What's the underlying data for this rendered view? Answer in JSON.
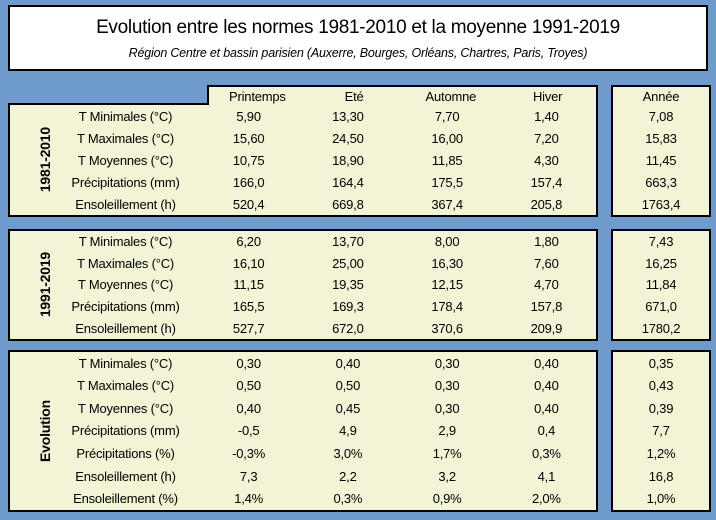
{
  "chart_data": {
    "type": "table",
    "title": "Evolution entre les normes 1981-2010 et la moyenne 1991-2019",
    "subtitle": "Région Centre et bassin parisien (Auxerre, Bourges, Orléans, Chartres, Paris, Troyes)",
    "columns": [
      "Printemps",
      "Eté",
      "Automne",
      "Hiver"
    ],
    "year_column_header": "Année",
    "sections": [
      {
        "label": "1981-2010",
        "rows": [
          {
            "label": "T Minimales (°C)",
            "values": [
              "5,90",
              "13,30",
              "7,70",
              "1,40"
            ],
            "annee": "7,08"
          },
          {
            "label": "T Maximales (°C)",
            "values": [
              "15,60",
              "24,50",
              "16,00",
              "7,20"
            ],
            "annee": "15,83"
          },
          {
            "label": "T Moyennes (°C)",
            "values": [
              "10,75",
              "18,90",
              "11,85",
              "4,30"
            ],
            "annee": "11,45"
          },
          {
            "label": "Précipitations (mm)",
            "values": [
              "166,0",
              "164,4",
              "175,5",
              "157,4"
            ],
            "annee": "663,3"
          },
          {
            "label": "Ensoleillement (h)",
            "values": [
              "520,4",
              "669,8",
              "367,4",
              "205,8"
            ],
            "annee": "1763,4"
          }
        ]
      },
      {
        "label": "1991-2019",
        "rows": [
          {
            "label": "T Minimales (°C)",
            "values": [
              "6,20",
              "13,70",
              "8,00",
              "1,80"
            ],
            "annee": "7,43"
          },
          {
            "label": "T Maximales (°C)",
            "values": [
              "16,10",
              "25,00",
              "16,30",
              "7,60"
            ],
            "annee": "16,25"
          },
          {
            "label": "T Moyennes (°C)",
            "values": [
              "11,15",
              "19,35",
              "12,15",
              "4,70"
            ],
            "annee": "11,84"
          },
          {
            "label": "Précipitations (mm)",
            "values": [
              "165,5",
              "169,3",
              "178,4",
              "157,8"
            ],
            "annee": "671,0"
          },
          {
            "label": "Ensoleillement (h)",
            "values": [
              "527,7",
              "672,0",
              "370,6",
              "209,9"
            ],
            "annee": "1780,2"
          }
        ]
      },
      {
        "label": "Evolution",
        "rows": [
          {
            "label": "T Minimales (°C)",
            "values": [
              "0,30",
              "0,40",
              "0,30",
              "0,40"
            ],
            "annee": "0,35"
          },
          {
            "label": "T Maximales (°C)",
            "values": [
              "0,50",
              "0,50",
              "0,30",
              "0,40"
            ],
            "annee": "0,43"
          },
          {
            "label": "T Moyennes (°C)",
            "values": [
              "0,40",
              "0,45",
              "0,30",
              "0,40"
            ],
            "annee": "0,39"
          },
          {
            "label": "Précipitations (mm)",
            "values": [
              "-0,5",
              "4,9",
              "2,9",
              "0,4"
            ],
            "annee": "7,7"
          },
          {
            "label": "Précipitations (%)",
            "values": [
              "-0,3%",
              "3,0%",
              "1,7%",
              "0,3%"
            ],
            "annee": "1,2%"
          },
          {
            "label": "Ensoleillement (h)",
            "values": [
              "7,3",
              "2,2",
              "3,2",
              "4,1"
            ],
            "annee": "16,8"
          },
          {
            "label": "Ensoleillement (%)",
            "values": [
              "1,4%",
              "0,3%",
              "0,9%",
              "2,0%"
            ],
            "annee": "1,0%"
          }
        ]
      }
    ],
    "layout_hints": {
      "grid": "off",
      "legend": "none"
    }
  },
  "colors": {
    "page_background": "#6e9bcc",
    "cell_background": "#f3f3d6",
    "title_background": "#ffffff",
    "border": "#000000",
    "text": "#000000"
  }
}
